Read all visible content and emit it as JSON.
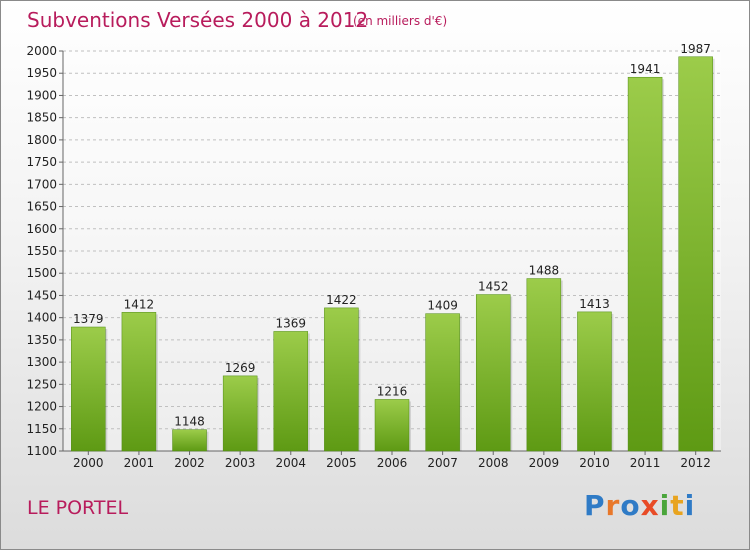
{
  "title": "Subventions Versées 2000 à 2012",
  "unit": "(en milliers d'€)",
  "commune": "LE PORTEL",
  "logo": {
    "text": "Proxiti",
    "letter_colors": [
      "#2f7bc6",
      "#e8782a",
      "#2f7bc6",
      "#e84b26",
      "#4aa53b",
      "#e8a41f",
      "#2f7bc6"
    ]
  },
  "colors": {
    "title": "#b81c5c",
    "bar_light": "#9ccc4a",
    "bar_dark": "#5e9a14",
    "grid": "#c0c0c0"
  },
  "chart_data": {
    "type": "bar",
    "title": "Subventions Versées 2000 à 2012",
    "categories": [
      "2000",
      "2001",
      "2002",
      "2003",
      "2004",
      "2005",
      "2006",
      "2007",
      "2008",
      "2009",
      "2010",
      "2011",
      "2012"
    ],
    "values": [
      1379,
      1412,
      1148,
      1269,
      1369,
      1422,
      1216,
      1409,
      1452,
      1488,
      1413,
      1941,
      1987
    ],
    "ylim": [
      1100,
      2000
    ],
    "yticks": [
      1100,
      1150,
      1200,
      1250,
      1300,
      1350,
      1400,
      1450,
      1500,
      1550,
      1600,
      1650,
      1700,
      1750,
      1800,
      1850,
      1900,
      1950,
      2000
    ],
    "grid": true,
    "data_labels": true
  }
}
